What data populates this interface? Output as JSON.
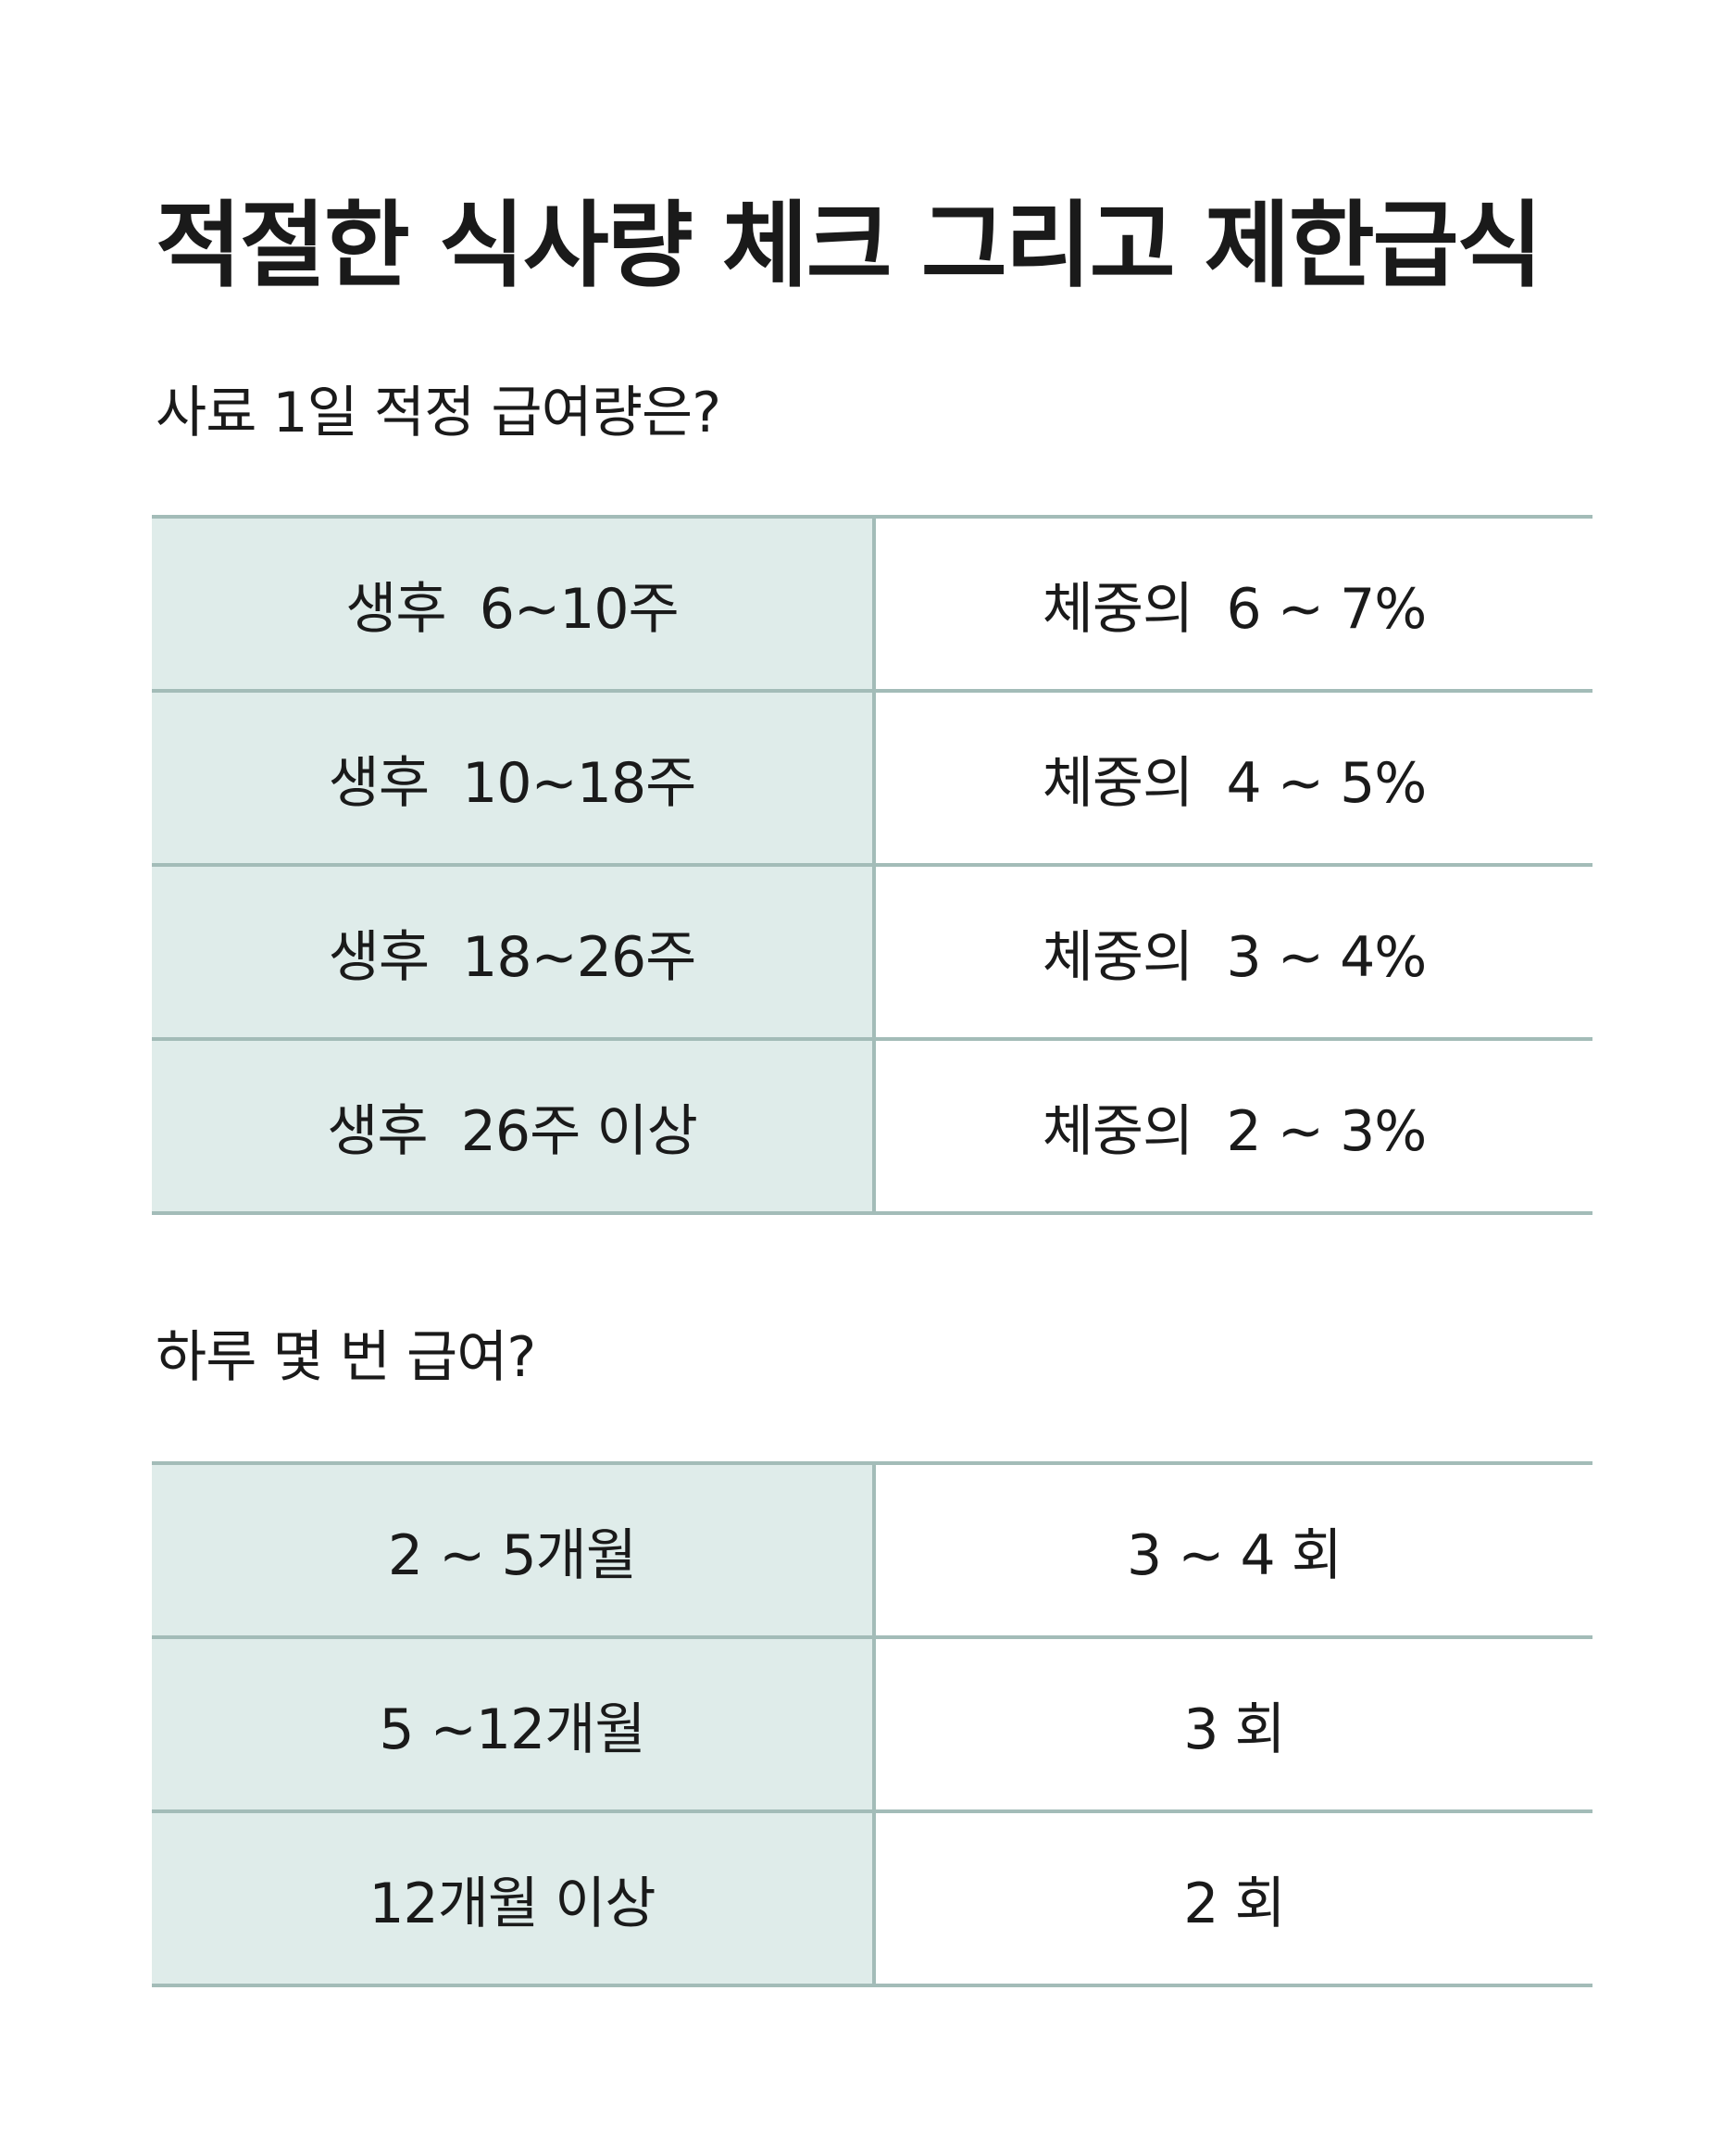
{
  "title": "적절한 식사량 체크 그리고 제한급식",
  "section1": {
    "heading": "사료 1일 적정 급여량은?",
    "rows": [
      {
        "age": "생후  6~10주",
        "amount": "체중의  6 ~ 7%"
      },
      {
        "age": "생후  10~18주",
        "amount": "체중의  4 ~ 5%"
      },
      {
        "age": "생후  18~26주",
        "amount": "체중의  3 ~ 4%"
      },
      {
        "age": "생후  26주 이상",
        "amount": "체중의  2 ~ 3%"
      }
    ]
  },
  "section2": {
    "heading": "하루 몇 번 급여?",
    "rows": [
      {
        "age": "2 ~ 5개월",
        "times": "3 ~ 4 회"
      },
      {
        "age": "5 ~12개월",
        "times": "3 회"
      },
      {
        "age": "12개월 이상",
        "times": "2 회"
      }
    ]
  },
  "colors": {
    "left_column_bg": "#dfecea",
    "rule_line": "#a3bcb8",
    "text": "#1a1a1a"
  }
}
